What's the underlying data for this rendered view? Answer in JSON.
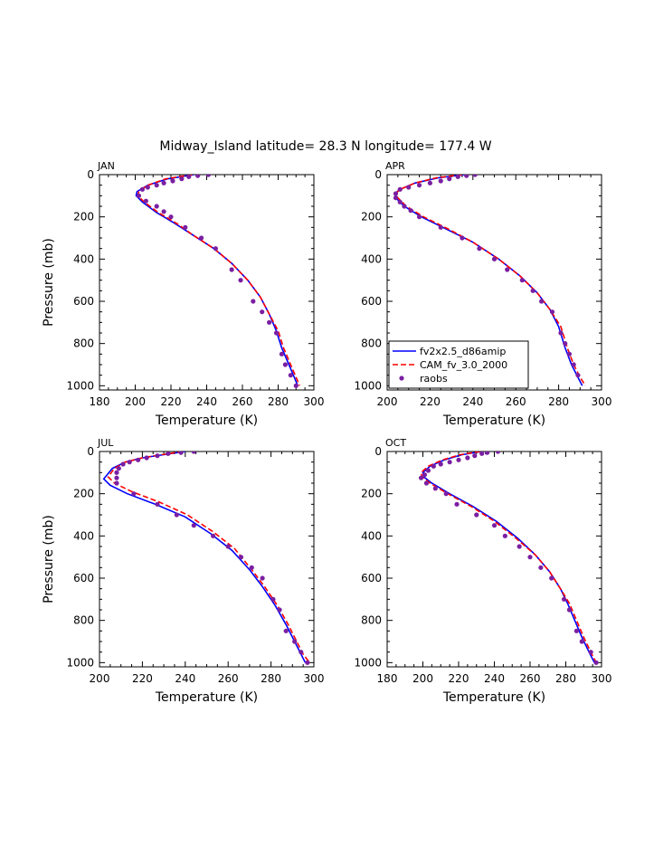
{
  "figure": {
    "title": "Midway_Island  latitude= 28.3 N longitude= 177.4 W"
  },
  "legend": {
    "entries": [
      {
        "label": "fv2x2.5_d86amip",
        "color": "#0000ff",
        "style": "solid"
      },
      {
        "label": "CAM_fv_3.0_2000",
        "color": "#ff0000",
        "style": "dashed"
      },
      {
        "label": "raobs",
        "color": "#7a1fa2",
        "style": "marker"
      }
    ]
  },
  "chart_data": [
    {
      "type": "line",
      "title": "JAN",
      "xlabel": "Temperature (K)",
      "ylabel": "Pressure (mb)",
      "xlim": [
        180,
        300
      ],
      "ylim": [
        1020,
        0
      ],
      "y_reversed": true,
      "xticks": [
        180,
        200,
        220,
        240,
        260,
        280,
        300
      ],
      "yticks": [
        0,
        200,
        400,
        600,
        800,
        1000
      ],
      "has_legend": false,
      "series": [
        {
          "name": "fv2x2.5_d86amip",
          "color": "#0000ff",
          "dash": "",
          "x": [
            233,
            218,
            207,
            201,
            200.5,
            204,
            212,
            222,
            233,
            244,
            254,
            263,
            270,
            275,
            279,
            282,
            286,
            289,
            291
          ],
          "y": [
            0,
            20,
            50,
            80,
            100,
            130,
            180,
            230,
            290,
            350,
            420,
            500,
            580,
            660,
            740,
            820,
            900,
            960,
            1000
          ]
        },
        {
          "name": "CAM_fv_3.0_2000",
          "color": "#ff0000",
          "dash": "6,3",
          "x": [
            232,
            217,
            207,
            202,
            201.5,
            205,
            213,
            223,
            233,
            244,
            254,
            263,
            270,
            275,
            280,
            283,
            287,
            290,
            292
          ],
          "y": [
            0,
            20,
            50,
            80,
            100,
            130,
            180,
            230,
            290,
            350,
            420,
            500,
            580,
            660,
            740,
            820,
            900,
            960,
            1000
          ]
        },
        {
          "name": "raobs",
          "color": "#7a1fa2",
          "marker": true,
          "x": [
            241,
            235,
            230,
            226,
            221,
            216,
            212,
            207,
            204,
            202,
            206,
            212,
            216,
            220,
            228,
            237,
            245,
            254,
            259,
            266,
            271,
            275,
            279,
            282,
            284,
            287,
            290
          ],
          "y": [
            0,
            5,
            10,
            20,
            30,
            40,
            50,
            60,
            70,
            100,
            125,
            150,
            175,
            200,
            250,
            300,
            350,
            450,
            500,
            600,
            650,
            700,
            750,
            850,
            900,
            950,
            1000
          ]
        }
      ]
    },
    {
      "type": "line",
      "title": "APR",
      "xlabel": "Temperature (K)",
      "ylabel": "",
      "xlim": [
        200,
        300
      ],
      "ylim": [
        1020,
        0
      ],
      "y_reversed": true,
      "xticks": [
        200,
        220,
        240,
        260,
        280,
        300
      ],
      "yticks": [
        0,
        200,
        400,
        600,
        800,
        1000
      ],
      "has_legend": true,
      "series": [
        {
          "name": "fv2x2.5_d86amip",
          "color": "#0000ff",
          "dash": "",
          "x": [
            236,
            224,
            213,
            206,
            203.5,
            204,
            208,
            216,
            228,
            240,
            252,
            262,
            270,
            276,
            280,
            283,
            286,
            289,
            291
          ],
          "y": [
            0,
            15,
            40,
            70,
            90,
            110,
            150,
            200,
            260,
            320,
            400,
            480,
            560,
            640,
            720,
            820,
            900,
            960,
            1000
          ]
        },
        {
          "name": "CAM_fv_3.0_2000",
          "color": "#ff0000",
          "dash": "6,3",
          "x": [
            235,
            223,
            213,
            206,
            204,
            205,
            209,
            217,
            229,
            240,
            252,
            262,
            270,
            276,
            281,
            284,
            287,
            290,
            292.5
          ],
          "y": [
            0,
            15,
            40,
            70,
            90,
            110,
            150,
            200,
            260,
            320,
            400,
            480,
            560,
            640,
            720,
            820,
            900,
            960,
            1000
          ]
        },
        {
          "name": "raobs",
          "color": "#7a1fa2",
          "marker": true,
          "x": [
            241,
            237,
            233,
            229,
            225,
            220,
            215,
            210,
            206,
            204,
            204,
            206,
            208,
            211,
            215,
            225,
            235,
            243,
            250,
            256,
            263,
            268,
            272,
            277,
            281,
            283,
            285,
            287,
            289
          ],
          "y": [
            0,
            5,
            10,
            20,
            30,
            40,
            50,
            60,
            70,
            90,
            110,
            130,
            150,
            170,
            200,
            250,
            300,
            350,
            400,
            450,
            500,
            550,
            600,
            650,
            750,
            800,
            850,
            900,
            950
          ]
        }
      ]
    },
    {
      "type": "line",
      "title": "JUL",
      "xlabel": "Temperature (K)",
      "ylabel": "Pressure (mb)",
      "xlim": [
        200,
        300
      ],
      "ylim": [
        1020,
        0
      ],
      "y_reversed": true,
      "xticks": [
        200,
        220,
        240,
        260,
        280,
        300
      ],
      "yticks": [
        0,
        200,
        400,
        600,
        800,
        1000
      ],
      "has_legend": false,
      "series": [
        {
          "name": "fv2x2.5_d86amip",
          "color": "#0000ff",
          "dash": "",
          "x": [
            240,
            230,
            220,
            212,
            206,
            202,
            205,
            213,
            226,
            240,
            252,
            262,
            270,
            276,
            282,
            287,
            291,
            294,
            296
          ],
          "y": [
            0,
            15,
            30,
            50,
            80,
            130,
            160,
            200,
            250,
            310,
            390,
            470,
            560,
            640,
            730,
            820,
            900,
            960,
            1000
          ]
        },
        {
          "name": "CAM_fv_3.0_2000",
          "color": "#ff0000",
          "dash": "6,3",
          "x": [
            239,
            229,
            220,
            212,
            207,
            204,
            207,
            215,
            228,
            241,
            253,
            263,
            271,
            277,
            283,
            288,
            292,
            295,
            298
          ],
          "y": [
            0,
            15,
            30,
            50,
            80,
            120,
            150,
            190,
            240,
            300,
            380,
            460,
            560,
            640,
            730,
            820,
            900,
            960,
            1000
          ]
        },
        {
          "name": "raobs",
          "color": "#7a1fa2",
          "marker": true,
          "x": [
            244,
            238,
            232,
            227,
            222,
            218,
            214,
            211,
            209,
            208,
            208,
            208,
            216,
            227,
            236,
            244,
            253,
            260,
            266,
            271,
            276,
            281,
            284,
            287,
            291,
            294,
            297
          ],
          "y": [
            0,
            5,
            10,
            20,
            30,
            40,
            50,
            60,
            80,
            100,
            125,
            150,
            200,
            250,
            300,
            350,
            400,
            450,
            500,
            550,
            600,
            700,
            750,
            850,
            900,
            950,
            1000
          ]
        }
      ]
    },
    {
      "type": "line",
      "title": "OCT",
      "xlabel": "Temperature (K)",
      "ylabel": "",
      "xlim": [
        180,
        300
      ],
      "ylim": [
        1020,
        0
      ],
      "y_reversed": true,
      "xticks": [
        180,
        200,
        220,
        240,
        260,
        280,
        300
      ],
      "yticks": [
        0,
        200,
        400,
        600,
        800,
        1000
      ],
      "has_legend": false,
      "series": [
        {
          "name": "fv2x2.5_d86amip",
          "color": "#0000ff",
          "dash": "",
          "x": [
            233,
            222,
            212,
            204,
            200,
            200.5,
            205,
            215,
            228,
            241,
            253,
            263,
            271,
            277,
            281,
            285,
            289,
            293,
            296
          ],
          "y": [
            0,
            15,
            40,
            70,
            100,
            120,
            150,
            200,
            260,
            330,
            410,
            490,
            570,
            650,
            720,
            800,
            880,
            950,
            1000
          ]
        },
        {
          "name": "CAM_fv_3.0_2000",
          "color": "#ff0000",
          "dash": "6,3",
          "x": [
            232,
            221,
            211,
            203,
            199,
            199.5,
            204,
            214,
            227,
            240,
            252,
            263,
            271,
            277,
            282,
            286,
            290,
            294,
            297
          ],
          "y": [
            0,
            15,
            40,
            70,
            100,
            120,
            150,
            200,
            260,
            330,
            410,
            490,
            570,
            650,
            720,
            800,
            880,
            950,
            1000
          ]
        },
        {
          "name": "raobs",
          "color": "#7a1fa2",
          "marker": true,
          "x": [
            242,
            236,
            233,
            229,
            225,
            220,
            215,
            210,
            206,
            203,
            201,
            199,
            202,
            207,
            213,
            219,
            230,
            240,
            246,
            254,
            260,
            266,
            272,
            279,
            282,
            286,
            289,
            294,
            297
          ],
          "y": [
            0,
            5,
            10,
            20,
            30,
            40,
            50,
            60,
            70,
            90,
            110,
            125,
            150,
            175,
            200,
            250,
            300,
            350,
            400,
            450,
            500,
            550,
            600,
            700,
            750,
            850,
            900,
            950,
            1000
          ]
        }
      ]
    }
  ]
}
